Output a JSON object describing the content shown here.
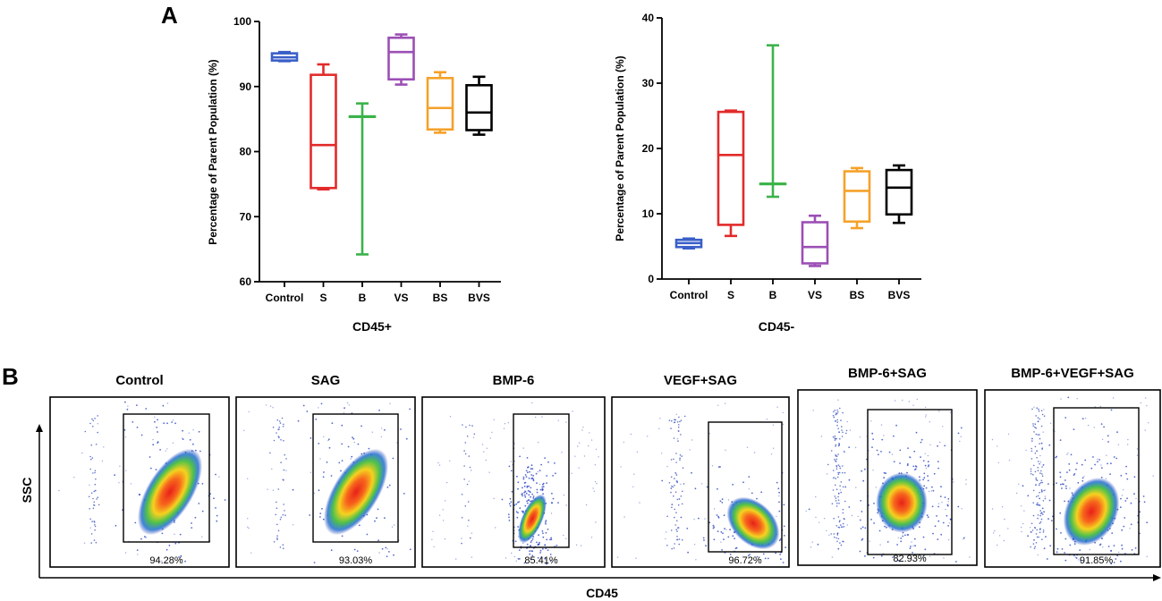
{
  "panel_labels": {
    "a": "A",
    "b": "B"
  },
  "colors": {
    "Control": "#3a5fc8",
    "S": "#e32a2a",
    "B": "#3bb34a",
    "VS": "#9b4fb5",
    "BS": "#f5a12a",
    "BVS": "#000000"
  },
  "chart_data": [
    {
      "type": "box",
      "title": "",
      "xlabel": "CD45+",
      "ylabel": "Percentage of Parent Population (%)",
      "ylim": [
        60,
        100
      ],
      "yticks": [
        60,
        70,
        80,
        90,
        100
      ],
      "categories": [
        "Control",
        "S",
        "B",
        "VS",
        "BS",
        "BVS"
      ],
      "boxes": [
        {
          "name": "Control",
          "min": 93.9,
          "q1": 94.0,
          "median": 94.5,
          "q3": 95.1,
          "max": 95.3
        },
        {
          "name": "S",
          "min": 74.2,
          "q1": 74.4,
          "median": 81.0,
          "q3": 91.8,
          "max": 93.4
        },
        {
          "name": "B",
          "min": 64.2,
          "q1": 85.4,
          "median": 85.4,
          "q3": 85.4,
          "max": 87.4
        },
        {
          "name": "VS",
          "min": 90.3,
          "q1": 91.1,
          "median": 95.3,
          "q3": 97.5,
          "max": 98.0
        },
        {
          "name": "BS",
          "min": 82.9,
          "q1": 83.4,
          "median": 86.7,
          "q3": 91.3,
          "max": 92.2
        },
        {
          "name": "BVS",
          "min": 82.6,
          "q1": 83.3,
          "median": 86.0,
          "q3": 90.2,
          "max": 91.5
        }
      ]
    },
    {
      "type": "box",
      "title": "",
      "xlabel": "CD45-",
      "ylabel": "Percentage of Parent Population (%)",
      "ylim": [
        0,
        40
      ],
      "yticks": [
        0,
        10,
        20,
        30,
        40
      ],
      "categories": [
        "Control",
        "S",
        "B",
        "VS",
        "BS",
        "BVS"
      ],
      "boxes": [
        {
          "name": "Control",
          "min": 4.7,
          "q1": 4.9,
          "median": 5.5,
          "q3": 6.0,
          "max": 6.2
        },
        {
          "name": "S",
          "min": 6.6,
          "q1": 8.3,
          "median": 19.0,
          "q3": 25.6,
          "max": 25.8
        },
        {
          "name": "B",
          "min": 12.6,
          "q1": 14.6,
          "median": 14.6,
          "q3": 14.6,
          "max": 35.8
        },
        {
          "name": "VS",
          "min": 2.0,
          "q1": 2.4,
          "median": 4.9,
          "q3": 8.7,
          "max": 9.7
        },
        {
          "name": "BS",
          "min": 7.8,
          "q1": 8.8,
          "median": 13.5,
          "q3": 16.5,
          "max": 17.0
        },
        {
          "name": "BVS",
          "min": 8.6,
          "q1": 9.9,
          "median": 14.0,
          "q3": 16.7,
          "max": 17.4
        }
      ]
    }
  ],
  "flow": {
    "y_axis_label": "SSC",
    "x_axis_label": "CD45",
    "plots": [
      {
        "title": "Control",
        "gate_percent": "94.28%"
      },
      {
        "title": "SAG",
        "gate_percent": "93.03%"
      },
      {
        "title": "BMP-6",
        "gate_percent": "85.41%"
      },
      {
        "title": "VEGF+SAG",
        "gate_percent": "96.72%"
      },
      {
        "title": "BMP-6+SAG",
        "gate_percent": "82.93%"
      },
      {
        "title": "BMP-6+VEGF+SAG",
        "gate_percent": "91.85%"
      }
    ]
  }
}
